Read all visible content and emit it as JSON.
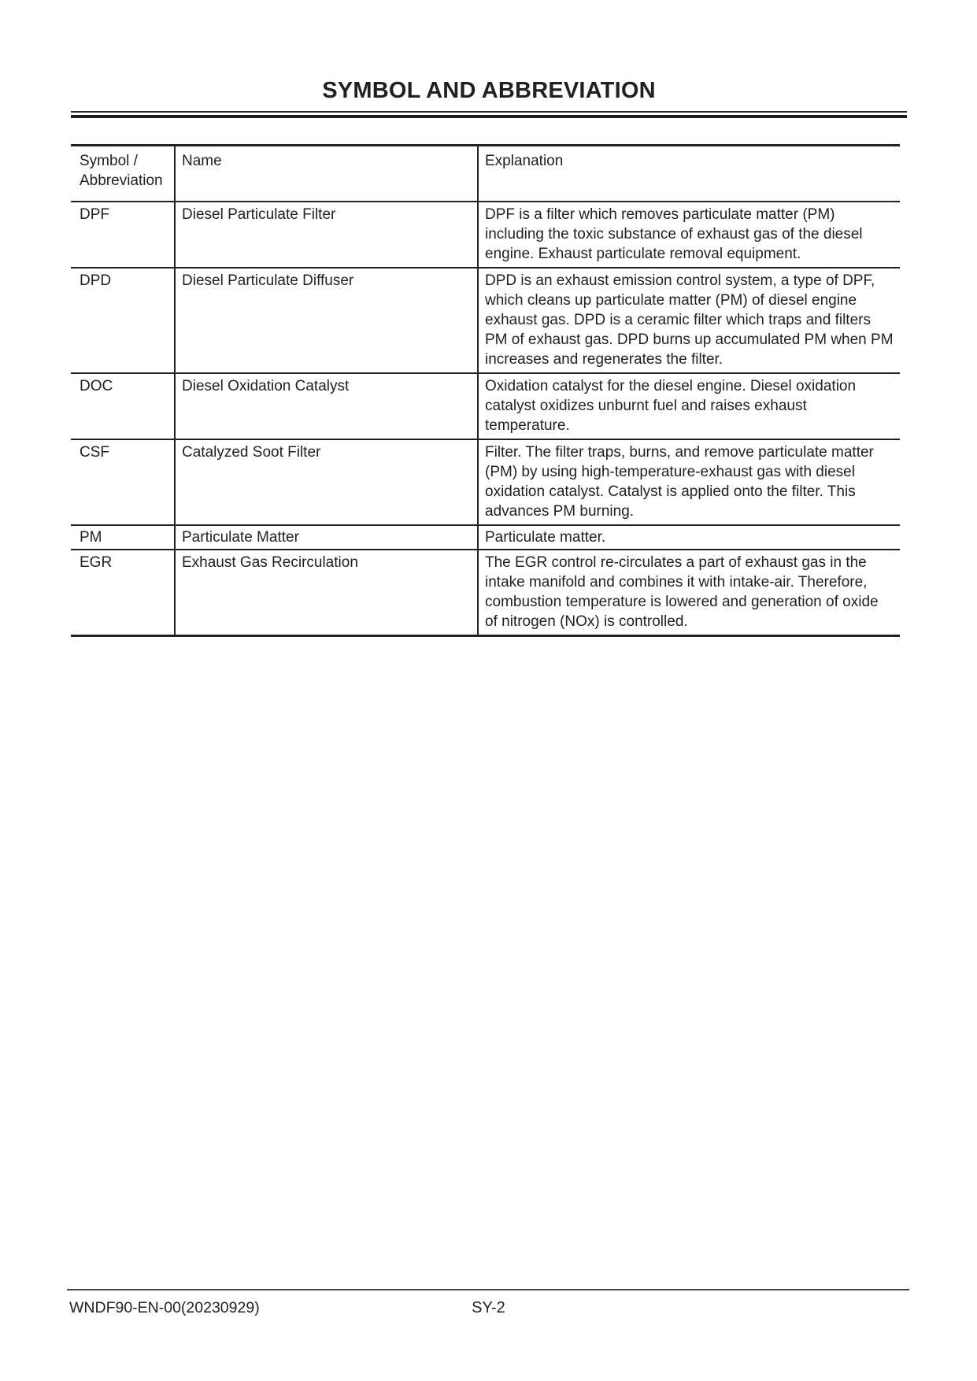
{
  "page": {
    "title": "SYMBOL AND ABBREVIATION",
    "footer": {
      "doc_code": "WNDF90-EN-00(20230929)",
      "page_number": "SY-2"
    }
  },
  "table": {
    "headers": [
      "Symbol /\nAbbreviation",
      "Name",
      "Explanation"
    ],
    "rows": [
      {
        "symbol": "DPF",
        "name": "Diesel Particulate Filter",
        "explanation": "DPF is a filter which removes particulate matter (PM) including the toxic substance of exhaust gas of the diesel engine. Exhaust particulate removal equipment."
      },
      {
        "symbol": "DPD",
        "name": "Diesel Particulate Diffuser",
        "explanation": "DPD is an exhaust emission control system, a type of DPF, which cleans up particulate matter (PM) of diesel engine exhaust gas. DPD is a ceramic filter which traps and filters PM of exhaust gas. DPD burns up accumulated PM when PM increases and regenerates the filter."
      },
      {
        "symbol": "DOC",
        "name": "Diesel Oxidation Catalyst",
        "explanation": "Oxidation catalyst for the diesel engine. Diesel oxidation catalyst oxidizes unburnt fuel and raises exhaust temperature."
      },
      {
        "symbol": "CSF",
        "name": "Catalyzed Soot Filter",
        "explanation": "Filter. The filter traps, burns, and remove particulate matter (PM) by using high-temperature-exhaust gas with diesel oxidation catalyst. Catalyst is applied onto the filter. This advances PM burning."
      },
      {
        "symbol": "PM",
        "name": "Particulate Matter",
        "explanation": "Particulate matter."
      },
      {
        "symbol": "EGR",
        "name": "Exhaust Gas Recirculation",
        "explanation": "The EGR control re-circulates a part of exhaust gas in the intake manifold and combines it with intake-air. Therefore, combustion temperature is lowered and generation of oxide of nitrogen (NOx) is controlled."
      }
    ]
  },
  "colors": {
    "text": "#231f20",
    "rule": "#231f20",
    "background": "#ffffff"
  }
}
